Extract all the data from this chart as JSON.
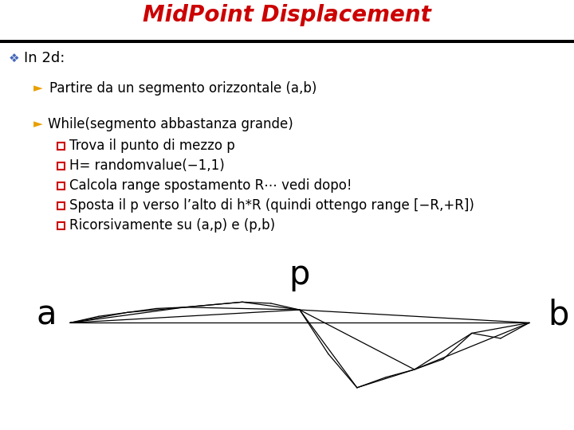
{
  "title": "MidPoint Displacement",
  "title_color": "#CC0000",
  "title_fontsize": 20,
  "bg_color": "#FFFFFF",
  "header_bar_color": "#000000",
  "bullet1_color": "#4466BB",
  "bullet1_text": "In 2d:",
  "bullet1_fontsize": 13,
  "arrow_color": "#E8A000",
  "line1_text": "Partire da un segmento orizzontale (a,b)",
  "line2_text": "While(segmento abbastanza grande)",
  "sub_items": [
    "Trova il punto di mezzo p",
    "H= randomvalue(−1,1)",
    "Calcola range spostamento R⋯ vedi dopo!",
    "Sposta il p verso l’alto di h*R (quindi ottengo range [−R,+R])",
    "Ricorsivamente su (a,p) e (p,b)"
  ],
  "text_fontsize": 12,
  "sub_fontsize": 12,
  "square_color": "#CC0000",
  "label_a": "a",
  "label_p": "p",
  "label_b": "b",
  "label_fontsize": 30,
  "segments": [
    [
      [
        0.0,
        0.0
      ],
      [
        1.0,
        0.0
      ]
    ],
    [
      [
        0.0,
        0.0
      ],
      [
        0.5,
        0.05
      ]
    ],
    [
      [
        0.5,
        0.05
      ],
      [
        1.0,
        0.0
      ]
    ],
    [
      [
        0.0,
        0.0
      ],
      [
        0.25,
        0.06
      ]
    ],
    [
      [
        0.25,
        0.06
      ],
      [
        0.5,
        0.05
      ]
    ],
    [
      [
        0.5,
        0.05
      ],
      [
        0.75,
        -0.18
      ]
    ],
    [
      [
        0.75,
        -0.18
      ],
      [
        1.0,
        0.0
      ]
    ],
    [
      [
        0.0,
        0.0
      ],
      [
        0.125,
        0.04
      ]
    ],
    [
      [
        0.125,
        0.04
      ],
      [
        0.25,
        0.06
      ]
    ],
    [
      [
        0.25,
        0.06
      ],
      [
        0.375,
        0.08
      ]
    ],
    [
      [
        0.375,
        0.08
      ],
      [
        0.5,
        0.05
      ]
    ],
    [
      [
        0.5,
        0.05
      ],
      [
        0.625,
        -0.25
      ]
    ],
    [
      [
        0.625,
        -0.25
      ],
      [
        0.75,
        -0.18
      ]
    ],
    [
      [
        0.75,
        -0.18
      ],
      [
        0.875,
        -0.04
      ]
    ],
    [
      [
        0.875,
        -0.04
      ],
      [
        1.0,
        0.0
      ]
    ],
    [
      [
        0.0,
        0.0
      ],
      [
        0.0625,
        0.025
      ]
    ],
    [
      [
        0.0625,
        0.025
      ],
      [
        0.125,
        0.04
      ]
    ],
    [
      [
        0.125,
        0.04
      ],
      [
        0.1875,
        0.055
      ]
    ],
    [
      [
        0.1875,
        0.055
      ],
      [
        0.25,
        0.06
      ]
    ],
    [
      [
        0.25,
        0.06
      ],
      [
        0.3125,
        0.07
      ]
    ],
    [
      [
        0.3125,
        0.07
      ],
      [
        0.375,
        0.08
      ]
    ],
    [
      [
        0.375,
        0.08
      ],
      [
        0.4375,
        0.075
      ]
    ],
    [
      [
        0.4375,
        0.075
      ],
      [
        0.5,
        0.05
      ]
    ],
    [
      [
        0.5,
        0.05
      ],
      [
        0.5625,
        -0.12
      ]
    ],
    [
      [
        0.5625,
        -0.12
      ],
      [
        0.625,
        -0.25
      ]
    ],
    [
      [
        0.625,
        -0.25
      ],
      [
        0.6875,
        -0.21
      ]
    ],
    [
      [
        0.6875,
        -0.21
      ],
      [
        0.75,
        -0.18
      ]
    ],
    [
      [
        0.75,
        -0.18
      ],
      [
        0.8125,
        -0.14
      ]
    ],
    [
      [
        0.8125,
        -0.14
      ],
      [
        0.875,
        -0.04
      ]
    ],
    [
      [
        0.875,
        -0.04
      ],
      [
        0.9375,
        -0.06
      ]
    ],
    [
      [
        0.9375,
        -0.06
      ],
      [
        1.0,
        0.0
      ]
    ]
  ]
}
